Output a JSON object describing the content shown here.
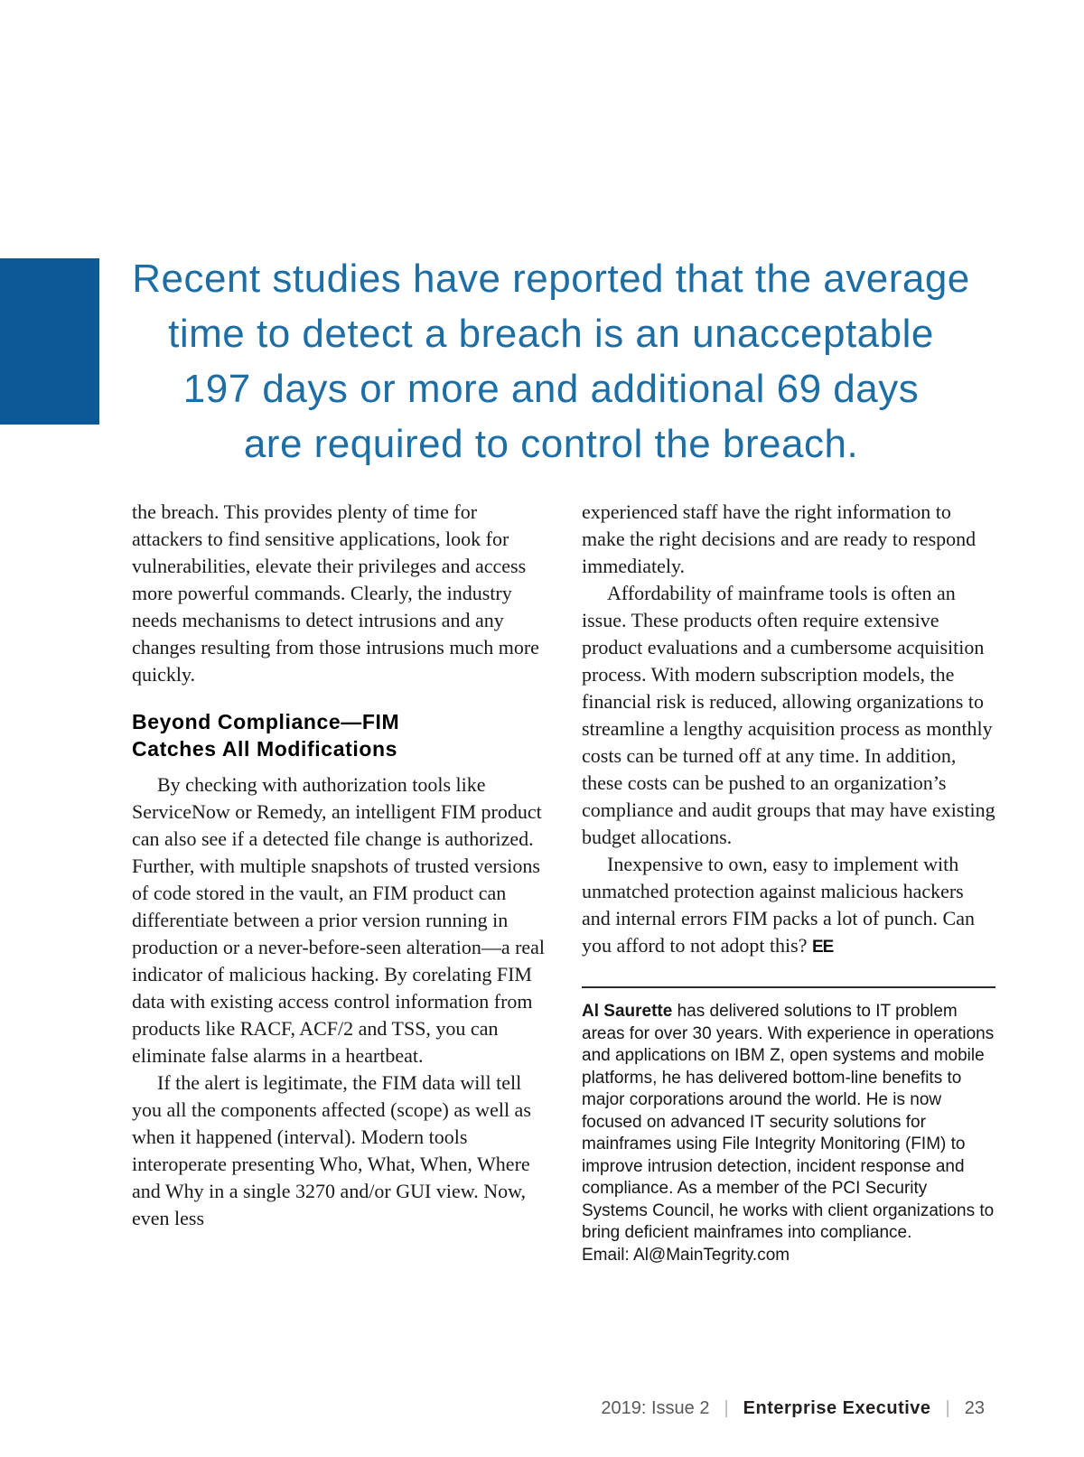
{
  "quote": {
    "lines": [
      "Recent studies have reported that the average",
      "time to detect a breach is an unacceptable",
      "197 days or more and additional 69 days",
      "are required to control the breach."
    ],
    "color": "#1e6ea6"
  },
  "accent_color": "#0b5a97",
  "left_column": {
    "p1": "the breach. This provides plenty of time for attackers to find sensitive applications, look for vulnerabilities, elevate their privileges and access more powerful commands. Clearly, the industry needs mechanisms to detect intrusions and any changes resulting from those intrusions much more quickly.",
    "heading_line1": "Beyond Compliance—FIM",
    "heading_line2": "Catches All Modifications",
    "p2": "By checking with authorization tools like ServiceNow or Remedy, an intelligent FIM product can also see if a detected file change is authorized. Further, with multiple snapshots of trusted versions of code stored in the vault, an FIM product can differentiate between a prior version running in production or a never-before-seen alteration—a real indicator of malicious hacking. By corelating FIM data with existing access control information from products like RACF, ACF/2 and TSS, you can eliminate false alarms in a heartbeat.",
    "p3": "If the alert is legitimate, the FIM data will tell you all the components affected (scope) as well as when it happened (interval). Modern tools interoperate presenting Who, What, When, Where and Why in a single 3270 and/or GUI view. Now, even less"
  },
  "right_column": {
    "p1": "experienced staff have the right information to make the right decisions and are ready to respond immediately.",
    "p2": "Affordability of mainframe tools is often an issue. These products often require extensive product evaluations and a cumbersome acquisition process. With modern subscription models, the financial risk is reduced, allowing organizations to streamline a lengthy acquisition process as monthly costs can be turned off at any time. In addition, these costs can be pushed to an organization’s compliance and audit groups that may have existing budget allocations.",
    "p3": "Inexpensive to own, easy to implement with unmatched protection against malicious hackers and internal errors FIM packs a lot of punch. Can you afford to not adopt this?",
    "end_mark": "EE"
  },
  "bio": {
    "author": "Al Saurette",
    "text": "has delivered solutions to IT problem areas for over 30 years. With experience in operations and applications on IBM Z, open systems and mobile platforms, he has delivered bottom-line benefits to major corporations around the world. He is now focused on advanced IT security solutions for mainframes using File Integrity Monitoring (FIM) to improve intrusion detection, incident response and compliance. As a member of the PCI Security Systems Council, he works with client organizations to bring deficient mainframes into compliance.",
    "email": "Email: Al@MainTegrity.com"
  },
  "footer": {
    "issue": "2019: Issue 2",
    "separator": "|",
    "magazine": "Enterprise Executive",
    "page_number": "23"
  }
}
